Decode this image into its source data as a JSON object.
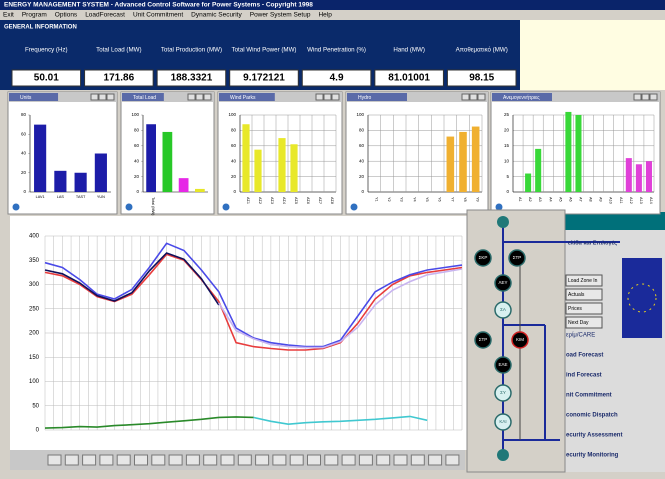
{
  "window": {
    "title": "ENERGY MANAGEMENT SYSTEM - Advanced Control Software for Power Systems - Copyright 1998"
  },
  "menu": [
    "Exit",
    "Program",
    "Options",
    "LoadForecast",
    "Unit Commitment",
    "Dynamic Security",
    "Power System Setup",
    "Help"
  ],
  "general_info": {
    "title": "GENERAL INFORMATION",
    "columns": [
      {
        "label": "Frequency (Hz)",
        "value": 50.01
      },
      {
        "label": "Total Load (MW)",
        "value": 171.86
      },
      {
        "label": "Total Production (MW)",
        "value": 188.3321
      },
      {
        "label": "Total Wind Power (MW)",
        "value": 9.172121
      },
      {
        "label": "Wind Penetration (%)",
        "value": 4.9
      },
      {
        "label": "Hand (MW)",
        "value": 81.01001
      },
      {
        "label": "Αποθεματικό (MW)",
        "value": 98.15
      }
    ]
  },
  "chart_data": [
    {
      "type": "bar",
      "title": "Units",
      "categories": [
        "LAV1",
        "LAS",
        "TAST",
        "YUN"
      ],
      "values": [
        70,
        22,
        20,
        40
      ],
      "colors": [
        "#1c1ca8",
        "#1c1ca8",
        "#1c1ca8",
        "#1c1ca8"
      ],
      "ylim": [
        0,
        80
      ],
      "yticks": [
        0,
        20,
        40,
        60,
        80
      ],
      "grid": false
    },
    {
      "type": "bar",
      "title": "Total Load",
      "categories": [
        "Total (MW)",
        null,
        null,
        null
      ],
      "values": [
        88,
        78,
        18,
        4
      ],
      "colors": [
        "#1c1ca8",
        "#28c828",
        "#e628e6",
        "#e6e628"
      ],
      "ylim": [
        0,
        100
      ],
      "yticks": [
        0,
        20,
        40,
        60,
        80,
        100
      ],
      "grid": false
    },
    {
      "type": "bar",
      "title": "Wind Parks",
      "categories": [
        "ΑΣ1",
        "ΑΣ2",
        "ΑΣ3",
        "ΑΣ4",
        "ΑΣ5",
        "ΑΣ6",
        "ΑΣ7",
        "ΑΣ8"
      ],
      "values": [
        88,
        55,
        0,
        70,
        62,
        0,
        0,
        0
      ],
      "colors": [
        "#e8e82a",
        "#e8e82a",
        "#e8e82a",
        "#e8e82a",
        "#e8e82a",
        "#e8e82a",
        "#e8e82a",
        "#e8e82a"
      ],
      "ylim": [
        0,
        100
      ],
      "yticks": [
        0,
        20,
        40,
        60,
        80,
        100
      ],
      "grid": true
    },
    {
      "type": "bar",
      "title": "Hydro",
      "categories": [
        "Υ1",
        "Υ2",
        "Υ3",
        "Υ4",
        "Υ5",
        "Υ6",
        "Υ7",
        "Υ8",
        "Υ9"
      ],
      "values": [
        0,
        0,
        0,
        0,
        0,
        0,
        72,
        78,
        85
      ],
      "colors": [
        "#f0b030",
        "#f0b030",
        "#f0b030",
        "#f0b030",
        "#f0b030",
        "#f0b030",
        "#f0b030",
        "#f0b030",
        "#f0b030"
      ],
      "ylim": [
        0,
        100
      ],
      "yticks": [
        0,
        20,
        40,
        60,
        80,
        100
      ],
      "grid": true
    },
    {
      "type": "bar",
      "title": "Ανεμογεννήτριες",
      "categories": [
        "Α1",
        "Α2",
        "Α3",
        "Α4",
        "Α5",
        "Α6",
        "Α7",
        "Α8",
        "Α9",
        "Α10",
        "Α11",
        "Α12",
        "Α13",
        "Α14"
      ],
      "values": [
        0,
        6,
        14,
        0,
        0,
        26,
        25,
        0,
        0,
        0,
        0,
        11,
        9,
        10
      ],
      "colors": [
        "#38d838",
        "#38d838",
        "#38d838",
        "#38d838",
        "#38d838",
        "#38d838",
        "#38d838",
        "#38d838",
        "#38d838",
        "#38d838",
        "#38d838",
        "#e040d8",
        "#e040d8",
        "#e040d8"
      ],
      "ylim": [
        0,
        25
      ],
      "yticks": [
        0,
        5,
        10,
        15,
        20,
        25
      ],
      "grid": true
    },
    {
      "type": "line",
      "ylim": [
        0,
        400
      ],
      "yticks": [
        0,
        50,
        100,
        150,
        200,
        250,
        300,
        350,
        400
      ],
      "grid": true,
      "series": [
        {
          "color": "#e83c3c",
          "values": [
            325,
            318,
            300,
            275,
            265,
            280,
            320,
            362,
            350,
            310,
            265,
            180,
            172,
            168,
            165,
            165,
            168,
            180,
            220,
            270,
            300,
            318,
            325,
            330,
            335
          ]
        },
        {
          "color": "#4a4ae8",
          "values": [
            345,
            335,
            310,
            280,
            270,
            290,
            335,
            385,
            370,
            330,
            285,
            210,
            190,
            180,
            175,
            172,
            172,
            185,
            235,
            285,
            305,
            320,
            330,
            335,
            340
          ]
        },
        {
          "color": "#10105a",
          "values": [
            330,
            322,
            303,
            277,
            266,
            283,
            328,
            365,
            352,
            312,
            258,
            null,
            null,
            null,
            null,
            null,
            null,
            null,
            null,
            null,
            null,
            null,
            null,
            null,
            null
          ]
        },
        {
          "color": "#c8b4f0",
          "values": [
            null,
            null,
            null,
            null,
            null,
            null,
            null,
            null,
            null,
            null,
            262,
            205,
            188,
            176,
            172,
            170,
            170,
            182,
            212,
            258,
            288,
            306,
            320,
            326,
            332
          ]
        },
        {
          "color": "#2a8a2a",
          "values": [
            4,
            5,
            7,
            6,
            9,
            11,
            13,
            16,
            19,
            22,
            26,
            27,
            26,
            null,
            null,
            null,
            null,
            null,
            null,
            null,
            null,
            null,
            null,
            null,
            null
          ]
        },
        {
          "color": "#40c8d0",
          "values": [
            null,
            null,
            null,
            null,
            null,
            null,
            null,
            null,
            null,
            null,
            null,
            null,
            26,
            18,
            12,
            15,
            17,
            18,
            20,
            22,
            25,
            28,
            20,
            null,
            null
          ]
        }
      ]
    }
  ],
  "side_menu": {
    "header": "ελίδα και Επιλογές",
    "buttons": [
      "Load Zone In",
      "Actuals",
      "Prices",
      "Next Day"
    ],
    "items": [
      "ερίμ/CARE",
      "oad Forecast",
      "ind Forecast",
      "nit Commitment",
      "conomic Dispatch",
      "ecurity Assessment",
      "ecurity Monitoring"
    ]
  },
  "diagram": {
    "nodes": [
      "ΣΚΡ",
      "ΣΤΡ",
      "ΛΕΥ",
      "ΣΑ",
      "ΣΤΡ",
      "ΚΙΜ",
      "ΕΛΕ",
      "ΣΥ",
      "ΚΛΙ"
    ]
  }
}
